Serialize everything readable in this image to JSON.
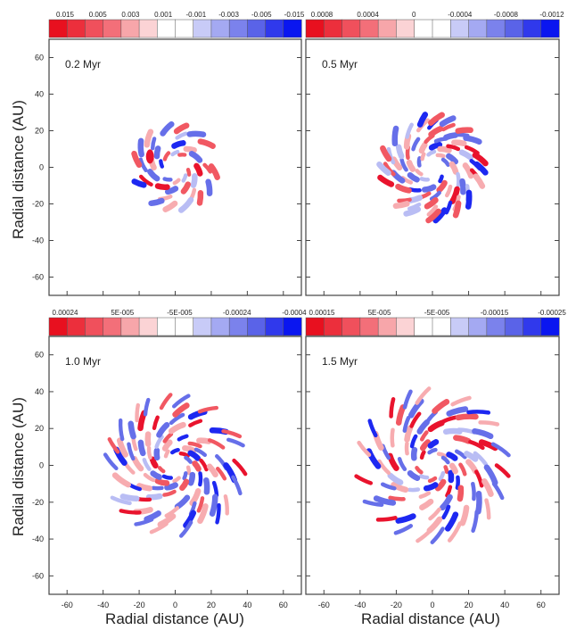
{
  "figure": {
    "ylabel": "Radial distance (AU)",
    "xlabel": "Radial distance (AU)"
  },
  "colors": {
    "red_deep": "#e8001c",
    "red_mid": "#f04a55",
    "red_light": "#f7a6aa",
    "blue_deep": "#0a16f0",
    "blue_mid": "#5a63e8",
    "blue_light": "#b4b8f4",
    "frame": "#444444"
  },
  "chart_data": [
    {
      "type": "heatmap",
      "label": "0.2 Myr",
      "colorbar_ticks": [
        "0.015",
        "0.005",
        "0.003",
        "0.001",
        "-0.001",
        "-0.003",
        "-0.005",
        "-0.015"
      ],
      "xlim": [
        -70,
        70
      ],
      "ylim": [
        -70,
        70
      ],
      "xticks": [
        -60,
        -40,
        -20,
        0,
        20,
        40,
        60
      ],
      "yticks": [
        60,
        40,
        20,
        0,
        -20,
        -40,
        -60
      ],
      "pattern": {
        "inner_radius": 4,
        "outer_radius": 22,
        "arms": 2,
        "rings": [
          8,
          13,
          18,
          22
        ]
      }
    },
    {
      "type": "heatmap",
      "label": "0.5 Myr",
      "colorbar_ticks": [
        "0.0008",
        "0.0004",
        "0",
        "-0.0004",
        "-0.0008",
        "-0.0012"
      ],
      "xlim": [
        -70,
        70
      ],
      "ylim": [
        -70,
        70
      ],
      "xticks": [
        -60,
        -40,
        -20,
        0,
        20,
        40,
        60
      ],
      "yticks": [
        60,
        40,
        20,
        0,
        -20,
        -40,
        -60
      ],
      "pattern": {
        "inner_radius": 5,
        "outer_radius": 27,
        "arms": 3,
        "rings": [
          8,
          12,
          16,
          20,
          24,
          27
        ]
      }
    },
    {
      "type": "heatmap",
      "label": "1.0 Myr",
      "colorbar_ticks": [
        "0.00024",
        "5E-005",
        "-5E-005",
        "-0.00024",
        "-0.0004"
      ],
      "xlim": [
        -70,
        70
      ],
      "ylim": [
        -70,
        70
      ],
      "xticks": [
        -60,
        -40,
        -20,
        0,
        20,
        40,
        60
      ],
      "yticks": [
        60,
        40,
        20,
        0,
        -20,
        -40,
        -60
      ],
      "pattern": {
        "inner_radius": 5,
        "outer_radius": 37,
        "arms": 4,
        "rings": [
          8,
          12,
          16,
          21,
          26,
          31,
          36
        ]
      }
    },
    {
      "type": "heatmap",
      "label": "1.5 Myr",
      "colorbar_ticks": [
        "0.00015",
        "5E-005",
        "-5E-005",
        "-0.00015",
        "-0.00025"
      ],
      "xlim": [
        -70,
        70
      ],
      "ylim": [
        -70,
        70
      ],
      "xticks": [
        -60,
        -40,
        -20,
        0,
        20,
        40,
        60
      ],
      "yticks": [
        60,
        40,
        20,
        0,
        -20,
        -40,
        -60
      ],
      "pattern": {
        "inner_radius": 5,
        "outer_radius": 40,
        "arms": 4,
        "rings": [
          8,
          12,
          17,
          22,
          27,
          33,
          39
        ]
      }
    }
  ]
}
